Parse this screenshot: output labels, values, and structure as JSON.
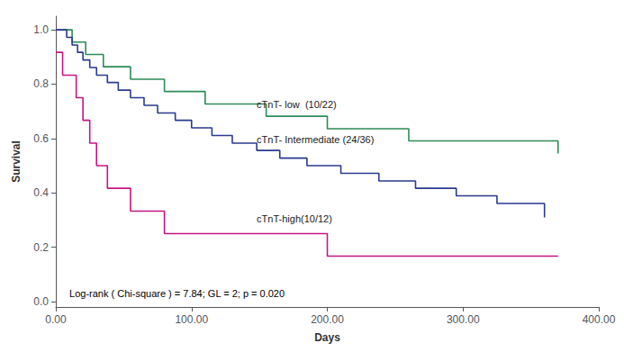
{
  "chart_data": {
    "type": "step",
    "xlabel": "Days",
    "ylabel": "Survival",
    "xlim": [
      0,
      400
    ],
    "ylim": [
      -0.02,
      1.05
    ],
    "xticks": [
      {
        "value": 0,
        "label": "0.00"
      },
      {
        "value": 100,
        "label": "100.00"
      },
      {
        "value": 200,
        "label": "200.00"
      },
      {
        "value": 300,
        "label": "300.00"
      },
      {
        "value": 400,
        "label": "400.00"
      }
    ],
    "yticks": [
      {
        "value": 0.0,
        "label": "0.0"
      },
      0.2,
      0.4,
      0.6,
      0.8,
      {
        "value": 1.0,
        "label": "1.0"
      }
    ],
    "grid": false,
    "series": [
      {
        "color": "#2e8b57",
        "x": [
          0,
          8,
          12,
          18,
          22,
          28,
          35,
          45,
          55,
          68,
          80,
          95,
          110,
          130,
          155,
          175,
          200,
          225,
          260,
          295,
          370
        ],
        "values": [
          1.0,
          1.0,
          0.955,
          0.955,
          0.909,
          0.909,
          0.864,
          0.864,
          0.818,
          0.818,
          0.773,
          0.773,
          0.727,
          0.727,
          0.682,
          0.682,
          0.636,
          0.636,
          0.591,
          0.591,
          0.545
        ]
      },
      {
        "color": "#2b3a8f",
        "x": [
          0,
          4,
          8,
          12,
          16,
          20,
          25,
          30,
          38,
          46,
          55,
          65,
          75,
          88,
          100,
          115,
          130,
          148,
          165,
          185,
          210,
          238,
          265,
          295,
          325,
          360
        ],
        "values": [
          1.0,
          1.0,
          0.972,
          0.944,
          0.917,
          0.889,
          0.861,
          0.833,
          0.806,
          0.778,
          0.75,
          0.722,
          0.694,
          0.667,
          0.639,
          0.611,
          0.583,
          0.556,
          0.528,
          0.5,
          0.472,
          0.444,
          0.417,
          0.389,
          0.361,
          0.31
        ]
      },
      {
        "color": "#c71585",
        "x": [
          0,
          5,
          10,
          15,
          20,
          25,
          30,
          38,
          48,
          55,
          65,
          80,
          100,
          130,
          160,
          200,
          280,
          370
        ],
        "values": [
          0.917,
          0.833,
          0.833,
          0.75,
          0.667,
          0.583,
          0.5,
          0.417,
          0.417,
          0.333,
          0.333,
          0.25,
          0.25,
          0.25,
          0.25,
          0.167,
          0.167,
          0.167
        ]
      }
    ],
    "annotations": [
      {
        "text": "cTnT- low  (10/22)",
        "x": 148,
        "y": 0.725,
        "color": "#1a1a1a"
      },
      {
        "text": "cTnT- Intermediate (24/36)",
        "x": 148,
        "y": 0.595,
        "color": "#1a1a1a"
      },
      {
        "text": "cTnT-high(10/12)",
        "x": 148,
        "y": 0.305,
        "color": "#1a1a1a"
      },
      {
        "text": "Log-rank ( Chi-square ) = 7.84; GL = 2; p = 0.020",
        "x": 10,
        "y": 0.03,
        "color": "#000000"
      }
    ]
  }
}
